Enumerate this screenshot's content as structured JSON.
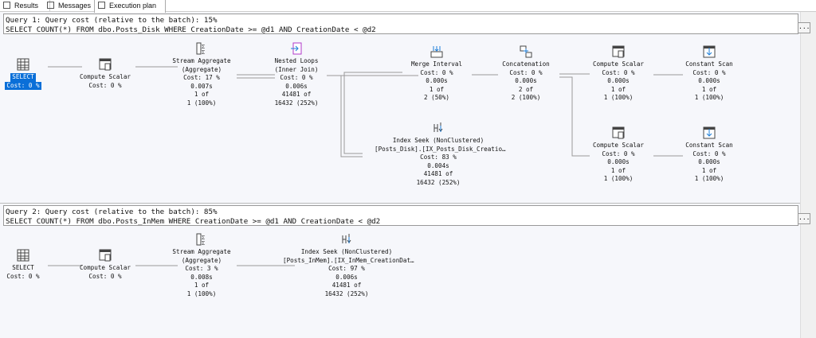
{
  "tabs": [
    {
      "label": "Results",
      "icon": "grid-icon"
    },
    {
      "label": "Messages",
      "icon": "messages-icon"
    },
    {
      "label": "Execution plan",
      "icon": "plan-icon",
      "active": true
    }
  ],
  "queries": [
    {
      "header": "Query 1: Query cost (relative to the batch): 15%",
      "sql": "SELECT COUNT(*) FROM dbo.Posts_Disk WHERE CreationDate >= @d1 AND CreationDate < @d2",
      "nodes": [
        {
          "icon": "select-icon",
          "lines": [
            "SELECT",
            "Cost: 0 %"
          ],
          "selected": true
        },
        {
          "icon": "compute-scalar-icon",
          "lines": [
            "Compute Scalar",
            "Cost: 0 %"
          ]
        },
        {
          "icon": "stream-aggregate-icon",
          "lines": [
            "Stream Aggregate",
            "(Aggregate)",
            "Cost: 17 %",
            "0.007s",
            "1 of",
            "1 (100%)"
          ]
        },
        {
          "icon": "nested-loops-icon",
          "lines": [
            "Nested Loops",
            "(Inner Join)",
            "Cost: 0 %",
            "0.006s",
            "41481 of",
            "16432 (252%)"
          ]
        },
        {
          "icon": "merge-interval-icon",
          "lines": [
            "Merge Interval",
            "Cost: 0 %",
            "0.000s",
            "1 of",
            "2 (50%)"
          ]
        },
        {
          "icon": "concatenation-icon",
          "lines": [
            "Concatenation",
            "Cost: 0 %",
            "0.000s",
            "2 of",
            "2 (100%)"
          ]
        },
        {
          "icon": "compute-scalar-icon",
          "lines": [
            "Compute Scalar",
            "Cost: 0 %",
            "0.000s",
            "1 of",
            "1 (100%)"
          ]
        },
        {
          "icon": "constant-scan-icon",
          "lines": [
            "Constant Scan",
            "Cost: 0 %",
            "0.000s",
            "1 of",
            "1 (100%)"
          ]
        },
        {
          "icon": "index-seek-icon",
          "lines": [
            "Index Seek (NonClustered)",
            "[Posts_Disk].[IX_Posts_Disk_Creatio…",
            "Cost: 83 %",
            "0.004s",
            "41481 of",
            "16432 (252%)"
          ]
        },
        {
          "icon": "compute-scalar-icon",
          "lines": [
            "Compute Scalar",
            "Cost: 0 %",
            "0.000s",
            "1 of",
            "1 (100%)"
          ]
        },
        {
          "icon": "constant-scan-icon",
          "lines": [
            "Constant Scan",
            "Cost: 0 %",
            "0.000s",
            "1 of",
            "1 (100%)"
          ]
        }
      ]
    },
    {
      "header": "Query 2: Query cost (relative to the batch): 85%",
      "sql": "SELECT COUNT(*) FROM dbo.Posts_InMem WHERE CreationDate >= @d1 AND CreationDate < @d2",
      "nodes": [
        {
          "icon": "select-icon",
          "lines": [
            "SELECT",
            "Cost: 0 %"
          ]
        },
        {
          "icon": "compute-scalar-icon",
          "lines": [
            "Compute Scalar",
            "Cost: 0 %"
          ]
        },
        {
          "icon": "stream-aggregate-icon",
          "lines": [
            "Stream Aggregate",
            "(Aggregate)",
            "Cost: 3 %",
            "0.008s",
            "1 of",
            "1 (100%)"
          ]
        },
        {
          "icon": "index-seek-icon",
          "lines": [
            "Index Seek (NonClustered)",
            "[Posts_InMem].[IX_InMem_CreationDat…",
            "Cost: 97 %",
            "0.006s",
            "41481 of",
            "16432 (252%)"
          ]
        }
      ]
    }
  ],
  "more_button": "..."
}
